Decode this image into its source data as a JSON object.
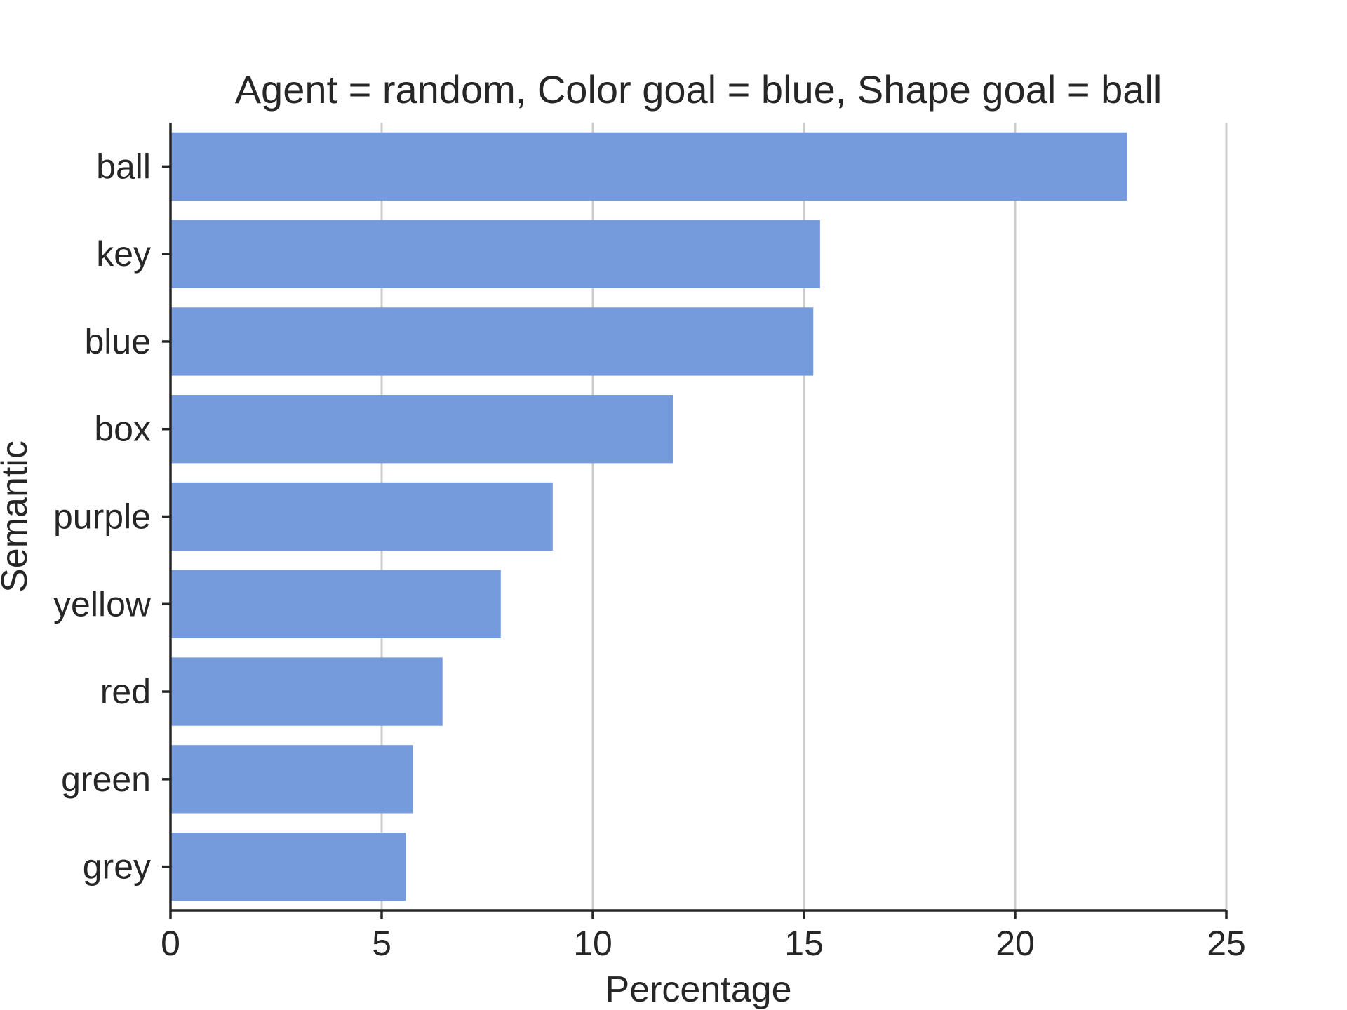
{
  "chart_data": {
    "type": "bar",
    "orientation": "horizontal",
    "title": "Agent = random, Color goal = blue, Shape goal = ball",
    "xlabel": "Percentage",
    "ylabel": "Semantic",
    "categories": [
      "ball",
      "key",
      "blue",
      "box",
      "purple",
      "yellow",
      "red",
      "green",
      "grey"
    ],
    "values": [
      22.65,
      15.38,
      15.22,
      11.9,
      9.05,
      7.82,
      6.44,
      5.74,
      5.57
    ],
    "xlim": [
      0,
      25
    ],
    "xticks": [
      "0",
      "5",
      "10",
      "15",
      "20",
      "25"
    ],
    "grid": "vertical",
    "bar_color": "#769BDC",
    "legend": "none"
  }
}
